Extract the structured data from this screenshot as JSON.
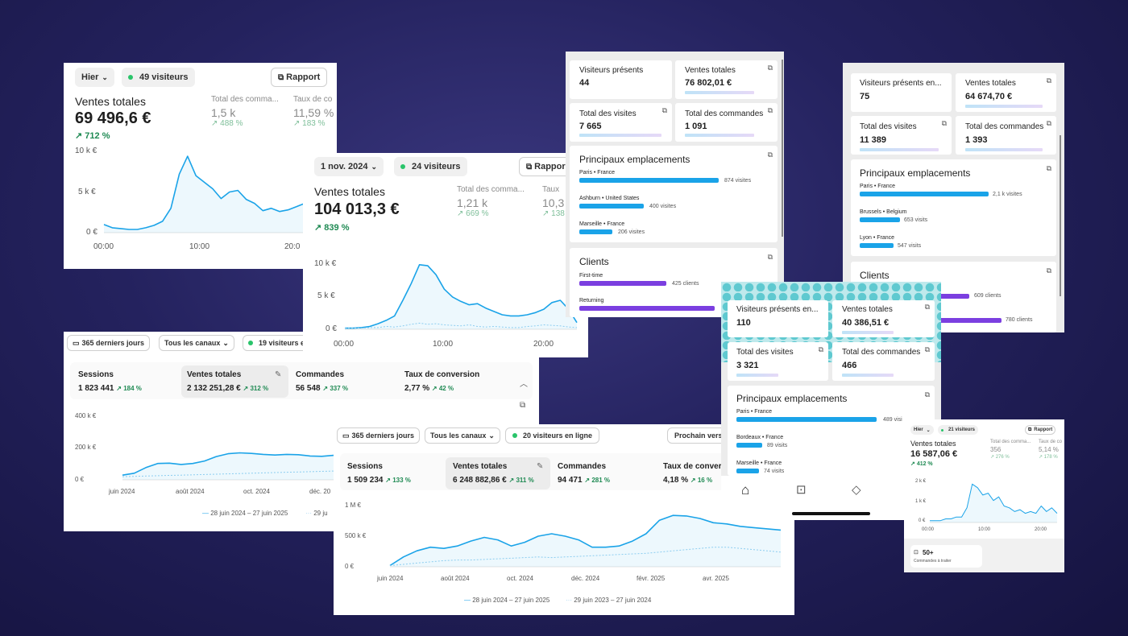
{
  "colors": {
    "accent": "#1aa3e8",
    "purple": "#7b3fe0",
    "green": "#1f8a53",
    "bg": "#24225e"
  },
  "icons": [
    "calendar-icon",
    "report-icon",
    "chevron-down-icon",
    "pencil-icon",
    "home-icon",
    "inbox-icon",
    "tag-icon",
    "orders-icon",
    "chevron-up-icon"
  ],
  "c1": {
    "period": "Hier",
    "visitors": "49 visiteurs",
    "report": "Rapport",
    "metric_label": "Ventes totales",
    "metric_value": "69 496,6 €",
    "metric_change": "712 %",
    "m2_label": "Total des comma...",
    "m2_value": "1,5 k",
    "m2_change": "488 %",
    "m3_label": "Taux de co",
    "m3_value": "11,59 %",
    "m3_change": "183 %",
    "yticks": [
      "10 k €",
      "5 k €",
      "0 €"
    ],
    "xticks": [
      "00:00",
      "10:00",
      "20:0"
    ]
  },
  "c2": {
    "period": "1 nov. 2024",
    "visitors": "24 visiteurs",
    "report": "Rappor",
    "metric_label": "Ventes totales",
    "metric_value": "104 013,3 €",
    "metric_change": "839 %",
    "m2_label": "Total des comma...",
    "m2_value": "1,21 k",
    "m2_change": "669 %",
    "m3_label": "Taux",
    "m3_value": "10,3",
    "m3_change": "138",
    "yticks": [
      "10 k €",
      "5 k €",
      "0 €"
    ],
    "xticks": [
      "00:00",
      "10:00",
      "20:00"
    ]
  },
  "c3": {
    "period": "365 derniers jours",
    "channels": "Tous les canaux",
    "visitors": "19 visiteurs e",
    "tabs": [
      {
        "label": "Sessions",
        "value": "1 823 441",
        "change": "184 %"
      },
      {
        "label": "Ventes totales",
        "value": "2 132 251,28 €",
        "change": "312 %"
      },
      {
        "label": "Commandes",
        "value": "56 548",
        "change": "337 %"
      },
      {
        "label": "Taux de conversion",
        "value": "2,77 %",
        "change": "42 %"
      }
    ],
    "yticks": [
      "400 k €",
      "200 k €",
      "0 €"
    ],
    "xticks": [
      "juin 2024",
      "août 2024",
      "oct. 2024",
      "déc. 20"
    ],
    "legend1": "28 juin 2024 – 27 juin 2025",
    "legend2": "29 ju"
  },
  "c4": {
    "period": "365 derniers jours",
    "channels": "Tous les canaux",
    "visitors": "20 visiteurs en ligne",
    "next": "Prochain verse",
    "tabs": [
      {
        "label": "Sessions",
        "value": "1 509 234",
        "change": "133 %"
      },
      {
        "label": "Ventes totales",
        "value": "6 248 882,86 €",
        "change": "311 %"
      },
      {
        "label": "Commandes",
        "value": "94 471",
        "change": "281 %"
      },
      {
        "label": "Taux de convers",
        "value": "4,18 %",
        "change": "16 %"
      }
    ],
    "yticks": [
      "1 M €",
      "500 k €",
      "0 €"
    ],
    "xticks": [
      "juin 2024",
      "août 2024",
      "oct. 2024",
      "déc. 2024",
      "févr. 2025",
      "avr. 2025"
    ],
    "legend1": "28 juin 2024 – 27 juin 2025",
    "legend2": "29 juin 2023 – 27 juin 2024"
  },
  "m1": {
    "t1_label": "Visiteurs présents",
    "t1_value": "44",
    "t2_label": "Ventes totales",
    "t2_value": "76 802,01 €",
    "t3_label": "Total des visites",
    "t3_value": "7 665",
    "t4_label": "Total des commandes",
    "t4_value": "1 091",
    "loc_title": "Principaux emplacements",
    "locations": [
      {
        "name": "Paris • France",
        "value": "874 visites"
      },
      {
        "name": "Ashburn • United States",
        "value": "400 visites"
      },
      {
        "name": "Marseille • France",
        "value": "206 visites"
      }
    ],
    "clients_title": "Clients",
    "clients": [
      {
        "name": "First-time",
        "value": "425 clients"
      },
      {
        "name": "Returning",
        "value": ""
      }
    ]
  },
  "m2": {
    "t1_label": "Visiteurs présents en...",
    "t1_value": "75",
    "t2_label": "Ventes totales",
    "t2_value": "64 674,70 €",
    "t3_label": "Total des visites",
    "t3_value": "11 389",
    "t4_label": "Total des commandes",
    "t4_value": "1 393",
    "loc_title": "Principaux emplacements",
    "locations": [
      {
        "name": "Paris • France",
        "value": "2,1 k visites"
      },
      {
        "name": "Brussels • Belgium",
        "value": "653 visits"
      },
      {
        "name": "Lyon • France",
        "value": "547 visits"
      }
    ],
    "clients_title": "Clients",
    "clients": [
      {
        "value": "609 clients"
      },
      {
        "value": "780 clients"
      }
    ]
  },
  "m3": {
    "t1_label": "Visiteurs présents en...",
    "t1_value": "110",
    "t2_label": "Ventes totales",
    "t2_value": "40 386,51 €",
    "t3_label": "Total des visites",
    "t3_value": "3 321",
    "t4_label": "Total des commandes",
    "t4_value": "466",
    "loc_title": "Principaux emplacements",
    "locations": [
      {
        "name": "Paris • France",
        "value": "489 visi"
      },
      {
        "name": "Bordeaux • France",
        "value": "89 visits"
      },
      {
        "name": "Marseille • France",
        "value": "74 visits"
      }
    ]
  },
  "c5": {
    "period": "Hier",
    "visitors": "21 visiteurs",
    "report": "Rapport",
    "metric_label": "Ventes totales",
    "metric_value": "16 587,06 €",
    "metric_change": "412 %",
    "m2_label": "Total des comma...",
    "m2_value": "356",
    "m2_change": "276 %",
    "m3_label": "Taux de co",
    "m3_value": "5,14 %",
    "m3_change": "178 %",
    "yticks": [
      "2 k €",
      "1 k €",
      "0 €"
    ],
    "xticks": [
      "00:00",
      "10:00",
      "20:00"
    ],
    "orders_value": "50+",
    "orders_label": "Commandes à traiter"
  },
  "chart_data": [
    {
      "type": "line",
      "series": [
        {
          "values": [
            1,
            0.6,
            0.5,
            0.4,
            0.4,
            0.6,
            0.9,
            1.4,
            3,
            7.2,
            9.4,
            7,
            6.2,
            5.4,
            4.2,
            5,
            5.2,
            4.1,
            3.6,
            2.7,
            3,
            2.6,
            2.8,
            3.2,
            3.6,
            4.6,
            3.8
          ]
        }
      ],
      "xticks": [
        "00:00",
        "10:00",
        "20:0"
      ],
      "yticks": [
        "10 k €",
        "5 k €",
        "0 €"
      ],
      "ylim": [
        0,
        10
      ]
    },
    {
      "type": "line",
      "series": [
        {
          "values": [
            0.2,
            0.2,
            0.3,
            0.5,
            1,
            1.6,
            2.4,
            5.2,
            8.2,
            11.6,
            11.4,
            9.8,
            7.2,
            5.8,
            5,
            4.4,
            4.6,
            3.8,
            3.2,
            2.6,
            2.4,
            2.4,
            2.6,
            3,
            3.6,
            4.8,
            5.2,
            3.6,
            1.2
          ]
        },
        {
          "values": [
            0.2,
            0.2,
            0.2,
            0.3,
            0.3,
            0.5,
            0.4,
            0.6,
            0.9,
            1.1,
            0.9,
            1,
            0.8,
            0.7,
            0.6,
            0.8,
            0.5,
            0.4,
            0.5,
            0.4,
            0.3,
            0.3,
            0.5,
            0.6,
            0.8,
            0.7,
            0.6,
            0.4,
            0.3
          ]
        }
      ],
      "xticks": [
        "00:00",
        "10:00",
        "20:00"
      ],
      "yticks": [
        "10 k €",
        "5 k €",
        "0 €"
      ],
      "ylim": [
        0,
        12
      ]
    },
    {
      "type": "line",
      "series": [
        {
          "values": [
            30,
            42,
            78,
            104,
            106,
            98,
            104,
            120,
            148,
            166,
            172,
            168,
            162,
            158,
            162,
            160,
            152,
            150,
            156
          ]
        },
        {
          "values": [
            20,
            22,
            24,
            26,
            28,
            30,
            32,
            34,
            36,
            38,
            40,
            42,
            44,
            46,
            48,
            50,
            52,
            54,
            56
          ]
        }
      ],
      "xticks": [
        "juin 2024",
        "août 2024",
        "oct. 2024",
        "déc. 20"
      ],
      "yticks": [
        "400 k €",
        "200 k €",
        "0 €"
      ],
      "ylim": [
        0,
        400
      ]
    },
    {
      "type": "line",
      "series": [
        {
          "values": [
            20,
            160,
            260,
            320,
            300,
            340,
            420,
            480,
            440,
            340,
            400,
            500,
            540,
            500,
            440,
            320,
            320,
            340,
            420,
            540,
            760,
            840,
            830,
            790,
            720,
            700,
            660,
            640,
            620,
            600
          ]
        },
        {
          "values": [
            20,
            40,
            60,
            80,
            100,
            110,
            110,
            120,
            130,
            140,
            150,
            160,
            150,
            160,
            170,
            180,
            190,
            200,
            210,
            220,
            240,
            260,
            280,
            300,
            320,
            320,
            300,
            280,
            260,
            240
          ]
        }
      ],
      "xticks": [
        "juin 2024",
        "août 2024",
        "oct. 2024",
        "déc. 2024",
        "févr. 2025",
        "avr. 2025"
      ],
      "yticks": [
        "1 M €",
        "500 k €",
        "0 €"
      ],
      "ylim": [
        0,
        1000
      ]
    },
    {
      "type": "line",
      "series": [
        {
          "values": [
            0.1,
            0.1,
            0.1,
            0.2,
            0.2,
            0.3,
            0.3,
            0.8,
            2.1,
            1.9,
            1.5,
            1.6,
            1.2,
            1.4,
            0.9,
            0.8,
            0.6,
            0.7,
            0.5,
            0.6,
            0.5,
            0.9,
            0.6,
            0.8,
            0.5
          ]
        }
      ],
      "xticks": [
        "00:00",
        "10:00",
        "20:00"
      ],
      "yticks": [
        "2 k €",
        "1 k €",
        "0 €"
      ],
      "ylim": [
        0,
        2.2
      ]
    }
  ]
}
